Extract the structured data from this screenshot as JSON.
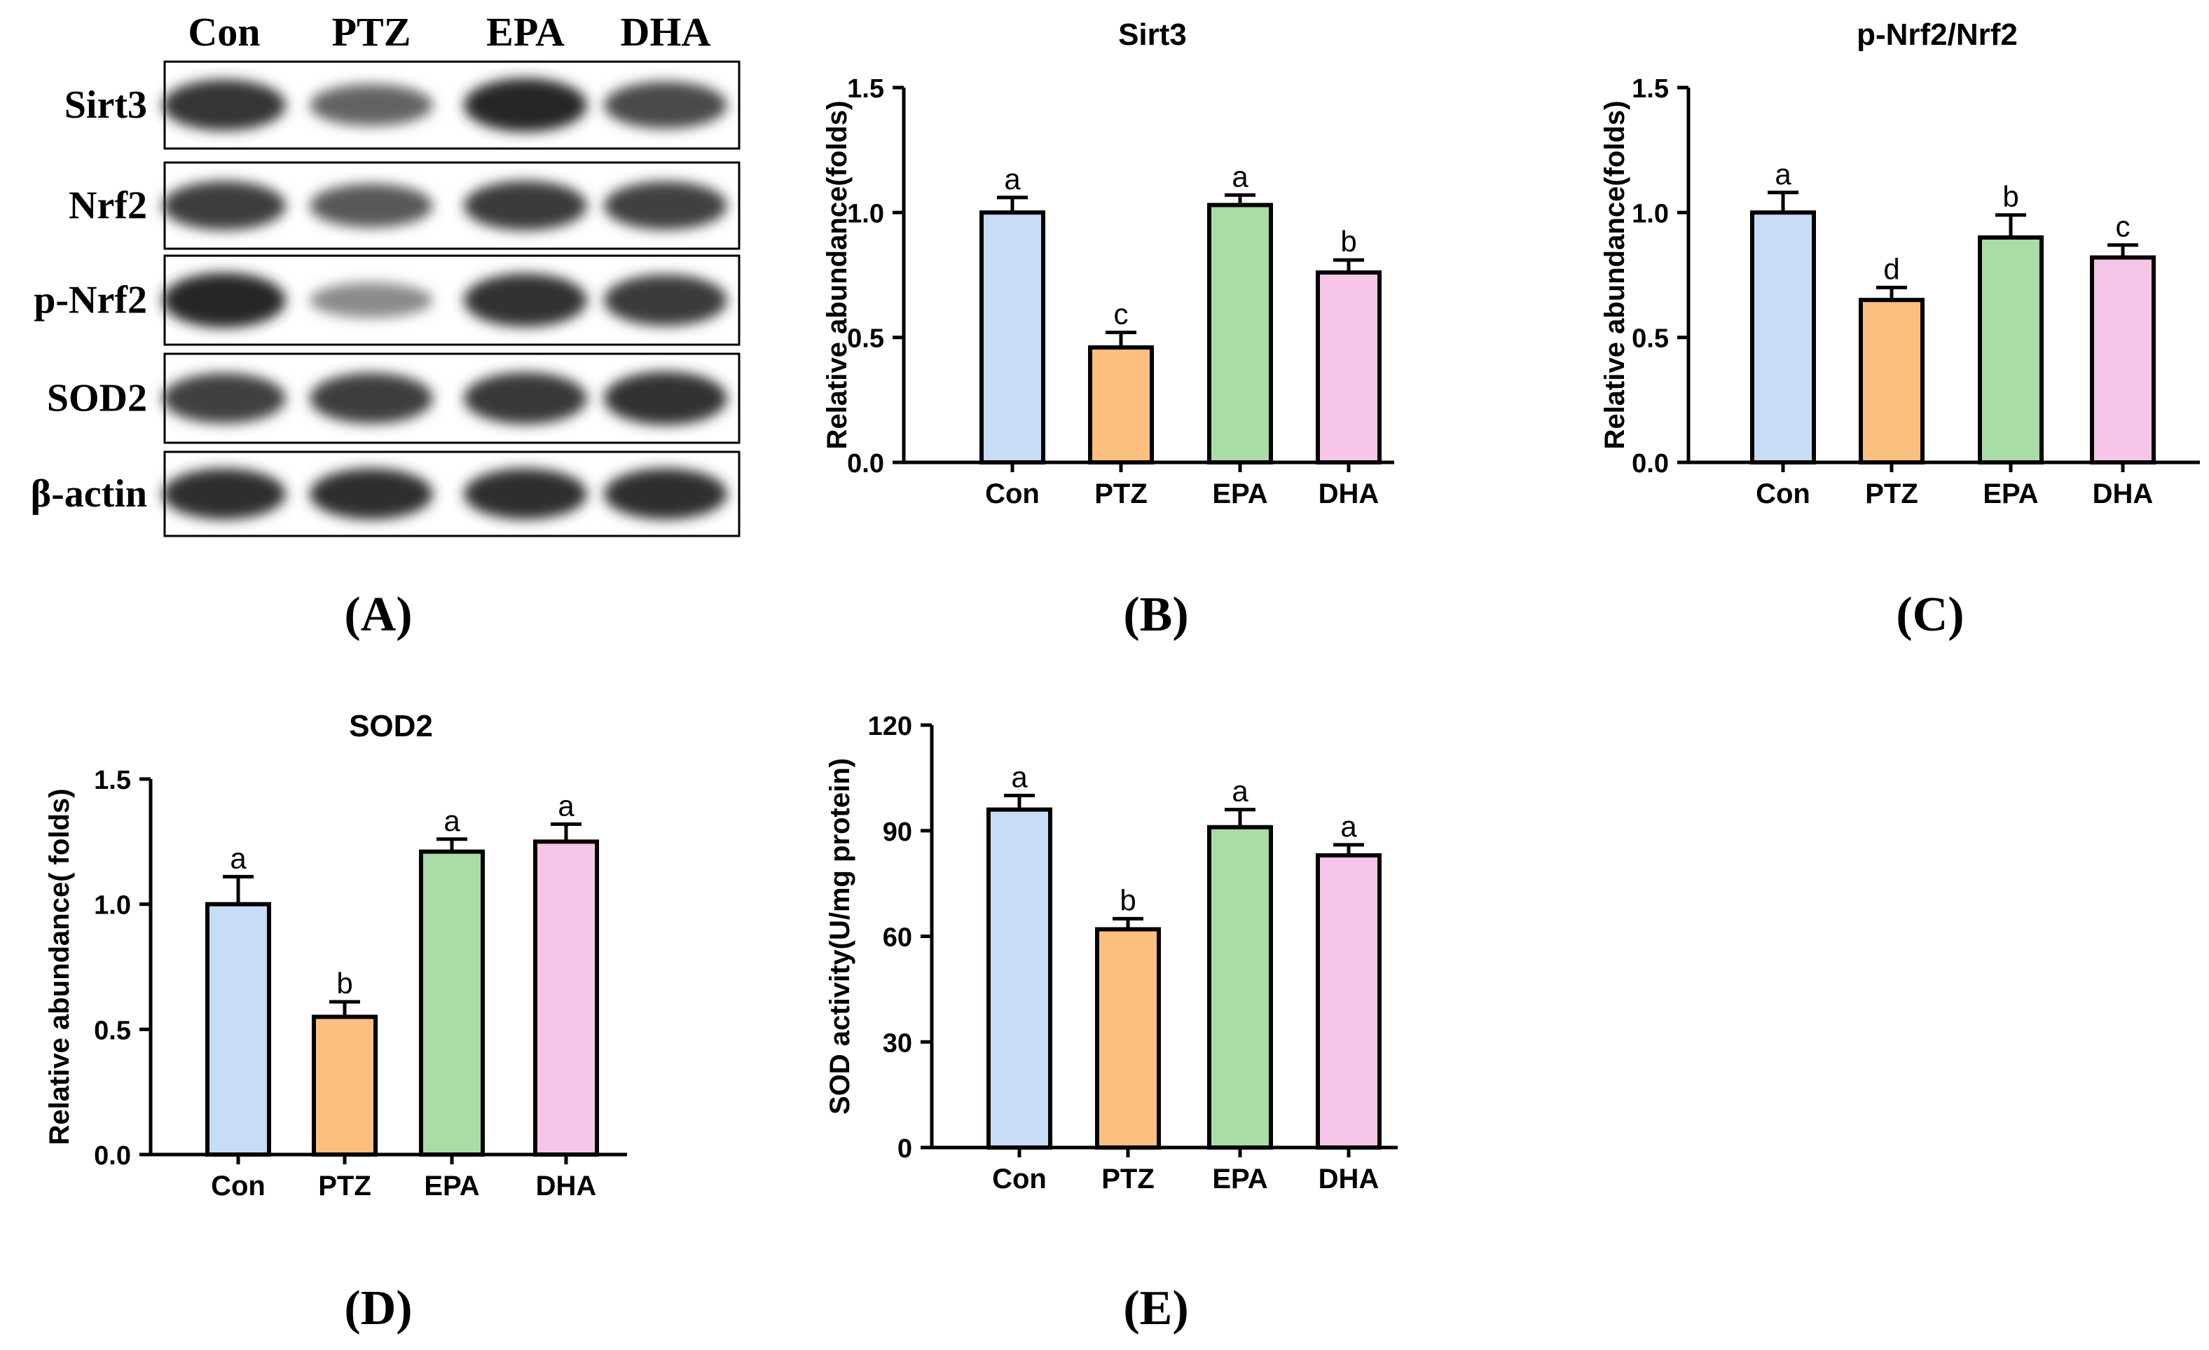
{
  "western_blot": {
    "lanes": [
      "Con",
      "PTZ",
      "EPA",
      "DHA"
    ],
    "rows": [
      {
        "label": "Sirt3",
        "intensity": [
          0.92,
          0.6,
          1.0,
          0.78
        ]
      },
      {
        "label": "Nrf2",
        "intensity": [
          0.86,
          0.68,
          0.88,
          0.84
        ]
      },
      {
        "label": "p-Nrf2",
        "intensity": [
          1.0,
          0.35,
          0.95,
          0.88
        ]
      },
      {
        "label": "SOD2",
        "intensity": [
          0.85,
          0.86,
          0.9,
          0.95
        ]
      },
      {
        "label": "β-actin",
        "intensity": [
          0.97,
          0.97,
          0.97,
          0.97
        ]
      }
    ]
  },
  "panel_labels": [
    "(A)",
    "(B)",
    "(C)",
    "(D)",
    "(E)"
  ],
  "colors": {
    "Con": "#c7dcf6",
    "PTZ": "#fbbf80",
    "EPA": "#a9dca7",
    "DHA": "#f7c5e8",
    "axis": "#000000"
  },
  "chart_data": [
    {
      "type": "bar",
      "panel": "B",
      "title": "Sirt3",
      "ylabel": "Relative abundance(folds)",
      "categories": [
        "Con",
        "PTZ",
        "EPA",
        "DHA"
      ],
      "values": [
        1.0,
        0.46,
        1.03,
        0.76
      ],
      "errors": [
        0.06,
        0.06,
        0.04,
        0.05
      ],
      "letters": [
        "a",
        "c",
        "a",
        "b"
      ],
      "ylim": [
        0,
        1.5
      ],
      "yticks": [
        "0.0",
        "0.5",
        "1.0",
        "1.5"
      ]
    },
    {
      "type": "bar",
      "panel": "C",
      "title": "p-Nrf2/Nrf2",
      "ylabel": "Relative abundance(folds)",
      "categories": [
        "Con",
        "PTZ",
        "EPA",
        "DHA"
      ],
      "values": [
        1.0,
        0.65,
        0.9,
        0.82
      ],
      "errors": [
        0.08,
        0.05,
        0.09,
        0.05
      ],
      "letters": [
        "a",
        "d",
        "b",
        "c"
      ],
      "ylim": [
        0,
        1.5
      ],
      "yticks": [
        "0.0",
        "0.5",
        "1.0",
        "1.5"
      ]
    },
    {
      "type": "bar",
      "panel": "D",
      "title": "SOD2",
      "ylabel": "Relative abundance( folds)",
      "categories": [
        "Con",
        "PTZ",
        "EPA",
        "DHA"
      ],
      "values": [
        1.0,
        0.55,
        1.21,
        1.25
      ],
      "errors": [
        0.11,
        0.06,
        0.05,
        0.07
      ],
      "letters": [
        "a",
        "b",
        "a",
        "a"
      ],
      "ylim": [
        0,
        1.5
      ],
      "yticks": [
        "0.0",
        "0.5",
        "1.0",
        "1.5"
      ]
    },
    {
      "type": "bar",
      "panel": "E",
      "title": "",
      "ylabel": "SOD activity(U/mg protein)",
      "categories": [
        "Con",
        "PTZ",
        "EPA",
        "DHA"
      ],
      "values": [
        96,
        62,
        91,
        83
      ],
      "errors": [
        4,
        3,
        5,
        3
      ],
      "letters": [
        "a",
        "b",
        "a",
        "a"
      ],
      "ylim": [
        0,
        120
      ],
      "yticks": [
        "0",
        "30",
        "60",
        "90",
        "120"
      ]
    }
  ]
}
